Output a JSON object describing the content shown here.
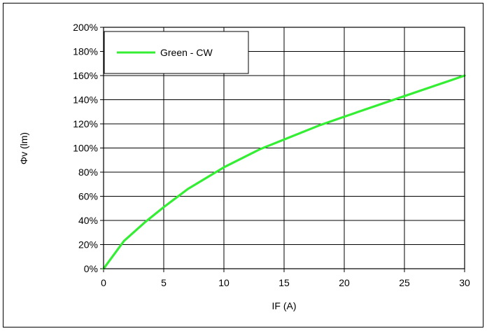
{
  "chart_data": {
    "type": "line",
    "xlabel": "IF (A)",
    "ylabel": "Φv (lm)",
    "xlim": [
      0,
      30
    ],
    "ylim": [
      0,
      200
    ],
    "x_ticks": [
      "0",
      "5",
      "10",
      "15",
      "20",
      "25",
      "30"
    ],
    "y_ticks": [
      "0%",
      "20%",
      "40%",
      "60%",
      "80%",
      "100%",
      "120%",
      "140%",
      "160%",
      "180%",
      "200%"
    ],
    "grid": true,
    "legend_position": "top-left",
    "series": [
      {
        "name": "Green - CW",
        "color": "#33ee33",
        "x": [
          0,
          1.7,
          3.5,
          5,
          7,
          10,
          13,
          15,
          18,
          20,
          25,
          30
        ],
        "y": [
          0,
          23,
          39,
          51,
          66,
          84,
          99,
          107,
          119,
          126,
          143,
          160
        ]
      }
    ]
  }
}
